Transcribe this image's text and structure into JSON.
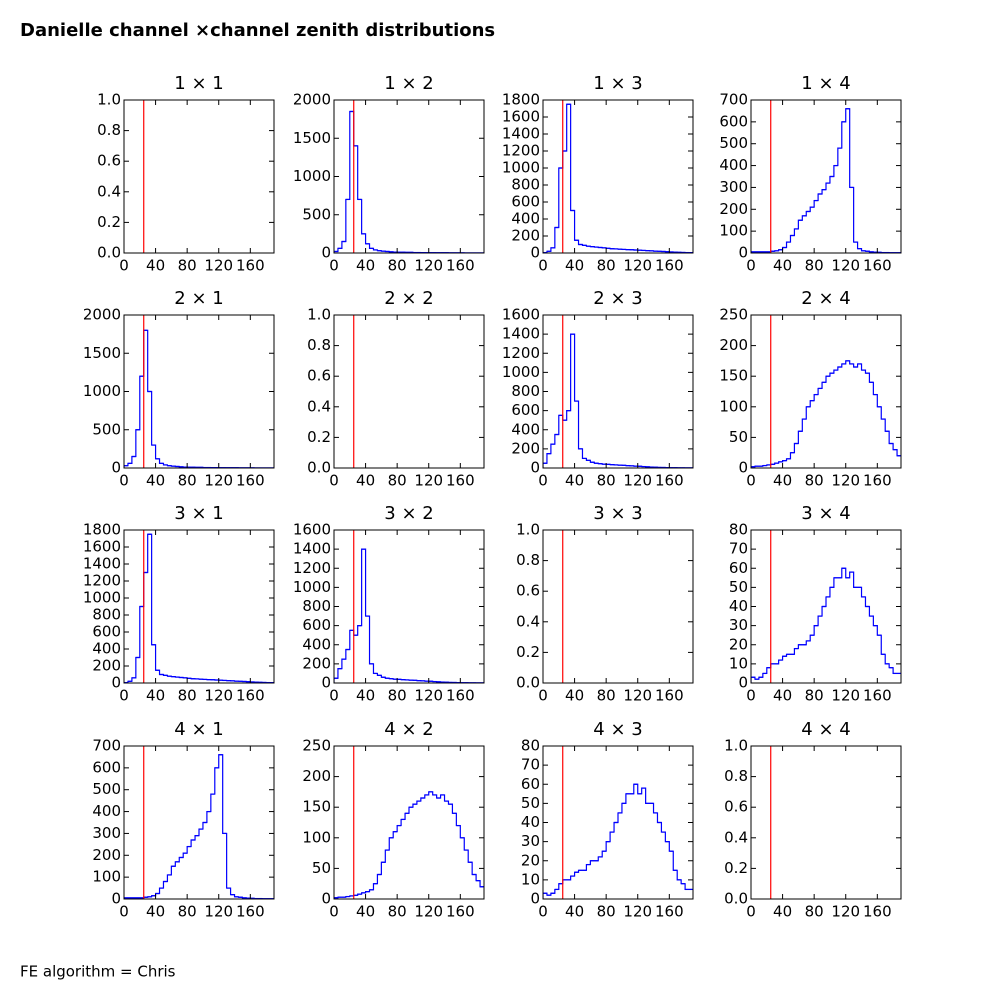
{
  "title": "Danielle channel ×channel zenith distributions",
  "footer": "FE algorithm = Chris",
  "chart_data": [
    {
      "type": "histogram",
      "title": "1 × 1",
      "color": "blue",
      "xlim": [
        0,
        190
      ],
      "xticks": [
        0,
        40,
        80,
        120,
        160
      ],
      "ylim": [
        0,
        1
      ],
      "yticks": [
        {
          "value": 0,
          "label": "0.0"
        },
        0.2,
        0.4,
        0.6,
        0.8,
        {
          "value": 1,
          "label": "1.0"
        }
      ],
      "vline": 25,
      "vline_color": "red"
    },
    {
      "type": "histogram",
      "title": "1 × 2",
      "color": "blue",
      "xlim": [
        0,
        190
      ],
      "xticks": [
        0,
        40,
        80,
        120,
        160
      ],
      "ylim": [
        0,
        2000
      ],
      "yticks": [
        0,
        500,
        1000,
        1500,
        2000
      ],
      "vline": 25,
      "vline_color": "red",
      "bins": [
        0,
        5,
        10,
        15,
        20,
        25,
        30,
        35,
        40,
        45,
        50,
        55,
        60,
        65,
        70,
        75,
        80,
        85,
        90,
        95,
        100,
        105,
        110,
        115,
        120,
        125,
        130,
        135,
        140,
        145,
        150,
        155,
        160,
        165,
        170,
        175,
        180,
        185,
        190
      ],
      "counts": [
        20,
        60,
        150,
        700,
        1850,
        1400,
        700,
        250,
        120,
        60,
        40,
        30,
        25,
        20,
        15,
        12,
        10,
        10,
        8,
        8,
        6,
        6,
        5,
        5,
        4,
        4,
        3,
        3,
        3,
        2,
        2,
        2,
        2,
        1,
        1,
        1,
        1,
        1
      ]
    },
    {
      "type": "histogram",
      "title": "1 × 3",
      "color": "blue",
      "xlim": [
        0,
        190
      ],
      "xticks": [
        0,
        40,
        80,
        120,
        160
      ],
      "ylim": [
        0,
        1800
      ],
      "yticks": [
        0,
        200,
        400,
        600,
        800,
        1000,
        1200,
        1400,
        1600,
        1800
      ],
      "vline": 25,
      "vline_color": "red",
      "bins": [
        0,
        5,
        10,
        15,
        20,
        25,
        30,
        35,
        40,
        45,
        50,
        55,
        60,
        65,
        70,
        75,
        80,
        85,
        90,
        95,
        100,
        105,
        110,
        115,
        120,
        125,
        130,
        135,
        140,
        145,
        150,
        155,
        160,
        165,
        170,
        175,
        180,
        185,
        190
      ],
      "counts": [
        5,
        20,
        60,
        300,
        1000,
        1200,
        1750,
        500,
        150,
        100,
        90,
        80,
        75,
        70,
        65,
        60,
        55,
        50,
        48,
        45,
        42,
        40,
        38,
        35,
        33,
        30,
        28,
        25,
        22,
        20,
        18,
        15,
        12,
        10,
        8,
        6,
        5,
        4
      ]
    },
    {
      "type": "histogram",
      "title": "1 × 4",
      "color": "blue",
      "xlim": [
        0,
        190
      ],
      "xticks": [
        0,
        40,
        80,
        120,
        160
      ],
      "ylim": [
        0,
        700
      ],
      "yticks": [
        0,
        100,
        200,
        300,
        400,
        500,
        600,
        700
      ],
      "vline": 25,
      "vline_color": "red",
      "bins": [
        0,
        5,
        10,
        15,
        20,
        25,
        30,
        35,
        40,
        45,
        50,
        55,
        60,
        65,
        70,
        75,
        80,
        85,
        90,
        95,
        100,
        105,
        110,
        115,
        120,
        125,
        130,
        135,
        140,
        145,
        150,
        155,
        160,
        165,
        170,
        175,
        180,
        185,
        190
      ],
      "counts": [
        5,
        5,
        5,
        5,
        5,
        8,
        10,
        15,
        25,
        50,
        80,
        110,
        150,
        170,
        190,
        210,
        240,
        270,
        290,
        320,
        350,
        400,
        480,
        600,
        660,
        300,
        50,
        20,
        10,
        8,
        5,
        4,
        3,
        2,
        2,
        1,
        1,
        1
      ]
    },
    {
      "type": "histogram",
      "title": "2 × 1",
      "color": "blue",
      "xlim": [
        0,
        190
      ],
      "xticks": [
        0,
        40,
        80,
        120,
        160
      ],
      "ylim": [
        0,
        2000
      ],
      "yticks": [
        0,
        500,
        1000,
        1500,
        2000
      ],
      "vline": 25,
      "vline_color": "red",
      "bins": [
        0,
        5,
        10,
        15,
        20,
        25,
        30,
        35,
        40,
        45,
        50,
        55,
        60,
        65,
        70,
        75,
        80,
        85,
        90,
        95,
        100,
        105,
        110,
        115,
        120,
        125,
        130,
        135,
        140,
        145,
        150,
        155,
        160,
        165,
        170,
        175,
        180,
        185,
        190
      ],
      "counts": [
        30,
        60,
        150,
        500,
        1200,
        1800,
        1000,
        300,
        120,
        60,
        40,
        30,
        25,
        20,
        15,
        12,
        10,
        10,
        8,
        8,
        6,
        6,
        5,
        5,
        4,
        4,
        3,
        3,
        3,
        2,
        2,
        2,
        2,
        1,
        1,
        1,
        1,
        1
      ]
    },
    {
      "type": "histogram",
      "title": "2 × 2",
      "color": "blue",
      "xlim": [
        0,
        190
      ],
      "xticks": [
        0,
        40,
        80,
        120,
        160
      ],
      "ylim": [
        0,
        1
      ],
      "yticks": [
        {
          "value": 0,
          "label": "0.0"
        },
        0.2,
        0.4,
        0.6,
        0.8,
        {
          "value": 1,
          "label": "1.0"
        }
      ],
      "vline": 25,
      "vline_color": "red"
    },
    {
      "type": "histogram",
      "title": "2 × 3",
      "color": "blue",
      "xlim": [
        0,
        190
      ],
      "xticks": [
        0,
        40,
        80,
        120,
        160
      ],
      "ylim": [
        0,
        1600
      ],
      "yticks": [
        0,
        200,
        400,
        600,
        800,
        1000,
        1200,
        1400,
        1600
      ],
      "vline": 25,
      "vline_color": "red",
      "bins": [
        0,
        5,
        10,
        15,
        20,
        25,
        30,
        35,
        40,
        45,
        50,
        55,
        60,
        65,
        70,
        75,
        80,
        85,
        90,
        95,
        100,
        105,
        110,
        115,
        120,
        125,
        130,
        135,
        140,
        145,
        150,
        155,
        160,
        165,
        170,
        175,
        180,
        185,
        190
      ],
      "counts": [
        50,
        150,
        250,
        350,
        550,
        500,
        600,
        1400,
        700,
        200,
        100,
        80,
        60,
        50,
        45,
        40,
        38,
        35,
        32,
        30,
        28,
        25,
        22,
        20,
        18,
        15,
        12,
        10,
        8,
        6,
        5,
        4,
        3,
        3,
        2,
        2,
        1,
        1
      ]
    },
    {
      "type": "histogram",
      "title": "2 × 4",
      "color": "blue",
      "xlim": [
        0,
        190
      ],
      "xticks": [
        0,
        40,
        80,
        120,
        160
      ],
      "ylim": [
        0,
        250
      ],
      "yticks": [
        0,
        50,
        100,
        150,
        200,
        250
      ],
      "vline": 25,
      "vline_color": "red",
      "bins": [
        0,
        5,
        10,
        15,
        20,
        25,
        30,
        35,
        40,
        45,
        50,
        55,
        60,
        65,
        70,
        75,
        80,
        85,
        90,
        95,
        100,
        105,
        110,
        115,
        120,
        125,
        130,
        135,
        140,
        145,
        150,
        155,
        160,
        165,
        170,
        175,
        180,
        185,
        190
      ],
      "counts": [
        2,
        3,
        3,
        4,
        5,
        6,
        8,
        10,
        12,
        15,
        25,
        40,
        60,
        80,
        100,
        110,
        120,
        130,
        140,
        150,
        155,
        160,
        165,
        170,
        175,
        170,
        165,
        170,
        160,
        155,
        140,
        120,
        100,
        80,
        60,
        40,
        30,
        20
      ]
    },
    {
      "type": "histogram",
      "title": "3 × 1",
      "color": "blue",
      "xlim": [
        0,
        190
      ],
      "xticks": [
        0,
        40,
        80,
        120,
        160
      ],
      "ylim": [
        0,
        1800
      ],
      "yticks": [
        0,
        200,
        400,
        600,
        800,
        1000,
        1200,
        1400,
        1600,
        1800
      ],
      "vline": 25,
      "vline_color": "red",
      "bins": [
        0,
        5,
        10,
        15,
        20,
        25,
        30,
        35,
        40,
        45,
        50,
        55,
        60,
        65,
        70,
        75,
        80,
        85,
        90,
        95,
        100,
        105,
        110,
        115,
        120,
        125,
        130,
        135,
        140,
        145,
        150,
        155,
        160,
        165,
        170,
        175,
        180,
        185,
        190
      ],
      "counts": [
        5,
        20,
        60,
        300,
        900,
        1300,
        1750,
        450,
        150,
        100,
        90,
        80,
        75,
        70,
        65,
        60,
        55,
        50,
        48,
        45,
        42,
        40,
        38,
        35,
        33,
        30,
        28,
        25,
        22,
        20,
        18,
        15,
        12,
        10,
        8,
        6,
        5,
        4
      ]
    },
    {
      "type": "histogram",
      "title": "3 × 2",
      "color": "blue",
      "xlim": [
        0,
        190
      ],
      "xticks": [
        0,
        40,
        80,
        120,
        160
      ],
      "ylim": [
        0,
        1600
      ],
      "yticks": [
        0,
        200,
        400,
        600,
        800,
        1000,
        1200,
        1400,
        1600
      ],
      "vline": 25,
      "vline_color": "red",
      "bins": [
        0,
        5,
        10,
        15,
        20,
        25,
        30,
        35,
        40,
        45,
        50,
        55,
        60,
        65,
        70,
        75,
        80,
        85,
        90,
        95,
        100,
        105,
        110,
        115,
        120,
        125,
        130,
        135,
        140,
        145,
        150,
        155,
        160,
        165,
        170,
        175,
        180,
        185,
        190
      ],
      "counts": [
        50,
        150,
        250,
        350,
        550,
        500,
        600,
        1400,
        700,
        200,
        100,
        80,
        60,
        50,
        45,
        40,
        38,
        35,
        32,
        30,
        28,
        25,
        22,
        20,
        18,
        15,
        12,
        10,
        8,
        6,
        5,
        4,
        3,
        3,
        2,
        2,
        1,
        1
      ]
    },
    {
      "type": "histogram",
      "title": "3 × 3",
      "color": "blue",
      "xlim": [
        0,
        190
      ],
      "xticks": [
        0,
        40,
        80,
        120,
        160
      ],
      "ylim": [
        0,
        1
      ],
      "yticks": [
        {
          "value": 0,
          "label": "0.0"
        },
        0.2,
        0.4,
        0.6,
        0.8,
        {
          "value": 1,
          "label": "1.0"
        }
      ],
      "vline": 25,
      "vline_color": "red"
    },
    {
      "type": "histogram",
      "title": "3 × 4",
      "color": "blue",
      "xlim": [
        0,
        190
      ],
      "xticks": [
        0,
        40,
        80,
        120,
        160
      ],
      "ylim": [
        0,
        80
      ],
      "yticks": [
        0,
        10,
        20,
        30,
        40,
        50,
        60,
        70,
        80
      ],
      "vline": 25,
      "vline_color": "red",
      "bins": [
        0,
        5,
        10,
        15,
        20,
        25,
        30,
        35,
        40,
        45,
        50,
        55,
        60,
        65,
        70,
        75,
        80,
        85,
        90,
        95,
        100,
        105,
        110,
        115,
        120,
        125,
        130,
        135,
        140,
        145,
        150,
        155,
        160,
        165,
        170,
        175,
        180,
        185,
        190
      ],
      "counts": [
        3,
        2,
        3,
        5,
        8,
        10,
        10,
        12,
        14,
        15,
        15,
        18,
        20,
        20,
        22,
        25,
        30,
        35,
        40,
        45,
        50,
        55,
        55,
        60,
        55,
        58,
        50,
        50,
        45,
        40,
        35,
        30,
        25,
        15,
        10,
        8,
        5,
        5
      ]
    },
    {
      "type": "histogram",
      "title": "4 × 1",
      "color": "blue",
      "xlim": [
        0,
        190
      ],
      "xticks": [
        0,
        40,
        80,
        120,
        160
      ],
      "ylim": [
        0,
        700
      ],
      "yticks": [
        0,
        100,
        200,
        300,
        400,
        500,
        600,
        700
      ],
      "vline": 25,
      "vline_color": "red",
      "bins": [
        0,
        5,
        10,
        15,
        20,
        25,
        30,
        35,
        40,
        45,
        50,
        55,
        60,
        65,
        70,
        75,
        80,
        85,
        90,
        95,
        100,
        105,
        110,
        115,
        120,
        125,
        130,
        135,
        140,
        145,
        150,
        155,
        160,
        165,
        170,
        175,
        180,
        185,
        190
      ],
      "counts": [
        5,
        5,
        5,
        5,
        5,
        8,
        10,
        15,
        25,
        50,
        80,
        110,
        150,
        170,
        190,
        210,
        240,
        270,
        290,
        320,
        350,
        400,
        480,
        600,
        660,
        300,
        50,
        20,
        10,
        8,
        5,
        4,
        3,
        2,
        2,
        1,
        1,
        1
      ]
    },
    {
      "type": "histogram",
      "title": "4 × 2",
      "color": "blue",
      "xlim": [
        0,
        190
      ],
      "xticks": [
        0,
        40,
        80,
        120,
        160
      ],
      "ylim": [
        0,
        250
      ],
      "yticks": [
        0,
        50,
        100,
        150,
        200,
        250
      ],
      "vline": 25,
      "vline_color": "red",
      "bins": [
        0,
        5,
        10,
        15,
        20,
        25,
        30,
        35,
        40,
        45,
        50,
        55,
        60,
        65,
        70,
        75,
        80,
        85,
        90,
        95,
        100,
        105,
        110,
        115,
        120,
        125,
        130,
        135,
        140,
        145,
        150,
        155,
        160,
        165,
        170,
        175,
        180,
        185,
        190
      ],
      "counts": [
        2,
        3,
        3,
        4,
        5,
        6,
        8,
        10,
        12,
        15,
        25,
        40,
        60,
        80,
        100,
        110,
        120,
        130,
        140,
        150,
        155,
        160,
        165,
        170,
        175,
        170,
        165,
        170,
        160,
        155,
        140,
        120,
        100,
        80,
        60,
        40,
        30,
        20
      ]
    },
    {
      "type": "histogram",
      "title": "4 × 3",
      "color": "blue",
      "xlim": [
        0,
        190
      ],
      "xticks": [
        0,
        40,
        80,
        120,
        160
      ],
      "ylim": [
        0,
        80
      ],
      "yticks": [
        0,
        10,
        20,
        30,
        40,
        50,
        60,
        70,
        80
      ],
      "vline": 25,
      "vline_color": "red",
      "bins": [
        0,
        5,
        10,
        15,
        20,
        25,
        30,
        35,
        40,
        45,
        50,
        55,
        60,
        65,
        70,
        75,
        80,
        85,
        90,
        95,
        100,
        105,
        110,
        115,
        120,
        125,
        130,
        135,
        140,
        145,
        150,
        155,
        160,
        165,
        170,
        175,
        180,
        185,
        190
      ],
      "counts": [
        3,
        2,
        3,
        5,
        8,
        10,
        10,
        12,
        14,
        15,
        15,
        18,
        20,
        20,
        22,
        25,
        30,
        35,
        40,
        45,
        50,
        55,
        55,
        60,
        55,
        58,
        50,
        50,
        45,
        40,
        35,
        30,
        25,
        15,
        10,
        8,
        5,
        5
      ]
    },
    {
      "type": "histogram",
      "title": "4 × 4",
      "color": "blue",
      "xlim": [
        0,
        190
      ],
      "xticks": [
        0,
        40,
        80,
        120,
        160
      ],
      "ylim": [
        0,
        1
      ],
      "yticks": [
        {
          "value": 0,
          "label": "0.0"
        },
        0.2,
        0.4,
        0.6,
        0.8,
        {
          "value": 1,
          "label": "1.0"
        }
      ],
      "vline": 25,
      "vline_color": "red"
    }
  ]
}
